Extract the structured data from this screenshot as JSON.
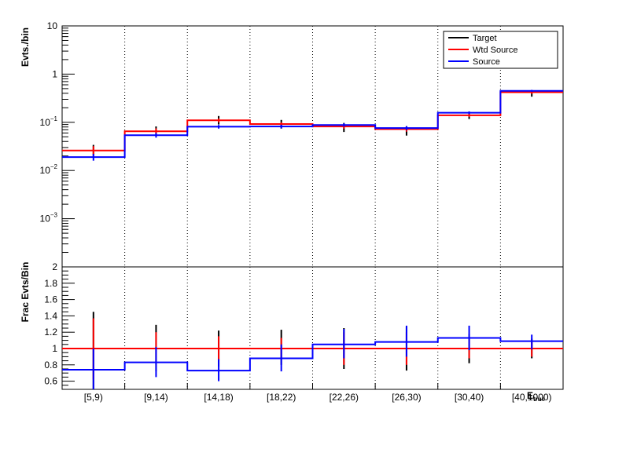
{
  "chart_data": {
    "type": "line",
    "x_categories": [
      "[5,9)",
      "[9,14)",
      "[14,18)",
      "[18,22)",
      "[22,26)",
      "[26,30)",
      "[30,40)",
      "[40,1000)"
    ],
    "xlabel": "E",
    "xlabel_sub": "true",
    "legend": {
      "placement": "top-right",
      "entries": [
        {
          "name": "Target",
          "color": "#000000"
        },
        {
          "name": "Wtd Source",
          "color": "#ff0000"
        },
        {
          "name": "Source",
          "color": "#0000ff"
        }
      ]
    },
    "top_panel": {
      "ylabel": "Evts./bin",
      "yscale": "log",
      "ylim": [
        0.0001,
        10
      ],
      "yticks": [
        {
          "v": 10,
          "base": "10",
          "exp": ""
        },
        {
          "v": 1,
          "base": "1",
          "exp": ""
        },
        {
          "v": 0.1,
          "base": "10",
          "exp": "−1"
        },
        {
          "v": 0.01,
          "base": "10",
          "exp": "−2"
        },
        {
          "v": 0.001,
          "base": "10",
          "exp": "−3"
        }
      ],
      "series": [
        {
          "name": "Target",
          "color": "#000000",
          "style": "errorbar",
          "values": [
            0.026,
            0.065,
            0.11,
            0.09,
            0.078,
            0.066,
            0.14,
            0.39
          ],
          "err_low": [
            0.021,
            0.052,
            0.09,
            0.074,
            0.063,
            0.053,
            0.117,
            0.34
          ],
          "err_high": [
            0.034,
            0.082,
            0.135,
            0.112,
            0.097,
            0.083,
            0.168,
            0.44
          ]
        },
        {
          "name": "Wtd Source",
          "color": "#ff0000",
          "style": "step",
          "values": [
            0.026,
            0.065,
            0.11,
            0.092,
            0.082,
            0.072,
            0.14,
            0.42
          ],
          "err_low": [
            0.02,
            0.056,
            0.1,
            0.084,
            0.074,
            0.064,
            0.13,
            0.39
          ],
          "err_high": [
            0.032,
            0.075,
            0.12,
            0.1,
            0.09,
            0.08,
            0.15,
            0.45
          ]
        },
        {
          "name": "Source",
          "color": "#0000ff",
          "style": "step",
          "values": [
            0.019,
            0.054,
            0.081,
            0.082,
            0.088,
            0.076,
            0.158,
            0.45
          ],
          "err_low": [
            0.016,
            0.048,
            0.074,
            0.075,
            0.081,
            0.069,
            0.148,
            0.43
          ],
          "err_high": [
            0.022,
            0.06,
            0.088,
            0.089,
            0.095,
            0.083,
            0.168,
            0.47
          ]
        }
      ]
    },
    "bottom_panel": {
      "ylabel": "Frac Evts/Bin",
      "yscale": "linear",
      "ylim": [
        0.5,
        2.0
      ],
      "yticks": [
        "0.6",
        "0.8",
        "1",
        "1.2",
        "1.4",
        "1.6",
        "1.8",
        "2"
      ],
      "series": [
        {
          "name": "Target",
          "color": "#000000",
          "style": "errorbar",
          "values": [
            1.0,
            1.0,
            1.0,
            1.0,
            1.0,
            1.0,
            1.0,
            1.0
          ],
          "err_low": [
            0.5,
            0.72,
            0.78,
            0.8,
            0.75,
            0.73,
            0.82,
            0.88
          ],
          "err_high": [
            1.45,
            1.29,
            1.22,
            1.23,
            1.25,
            1.27,
            1.18,
            1.12
          ]
        },
        {
          "name": "Wtd Source",
          "color": "#ff0000",
          "style": "step",
          "values": [
            1.0,
            1.0,
            1.0,
            1.0,
            1.0,
            1.0,
            1.0,
            1.0
          ],
          "err_low": [
            0.62,
            0.8,
            0.85,
            0.88,
            0.8,
            0.8,
            0.88,
            0.9
          ],
          "err_high": [
            1.37,
            1.2,
            1.15,
            1.13,
            1.2,
            1.2,
            1.12,
            1.1
          ]
        },
        {
          "name": "Source",
          "color": "#0000ff",
          "style": "step",
          "values": [
            0.74,
            0.83,
            0.73,
            0.88,
            1.05,
            1.08,
            1.13,
            1.09
          ],
          "err_low": [
            0.5,
            0.65,
            0.6,
            0.72,
            0.88,
            0.9,
            0.98,
            0.99
          ],
          "err_high": [
            1.0,
            1.02,
            0.87,
            1.05,
            1.24,
            1.28,
            1.28,
            1.17
          ]
        }
      ]
    },
    "grid": "vertical dotted lines at bin edges"
  }
}
